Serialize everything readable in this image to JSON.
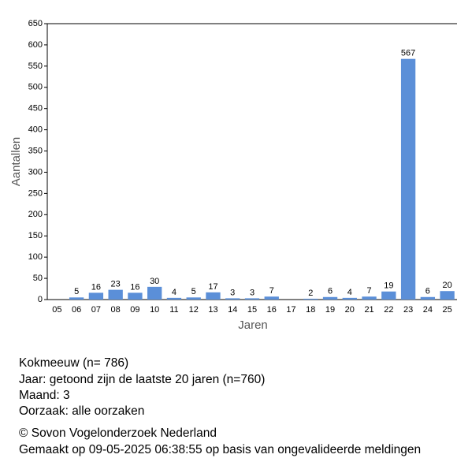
{
  "chart_data": {
    "type": "bar",
    "x_label": "Jaren",
    "y_label": "Aantallen",
    "categories": [
      "05",
      "06",
      "07",
      "08",
      "09",
      "10",
      "11",
      "12",
      "13",
      "14",
      "15",
      "16",
      "17",
      "18",
      "19",
      "20",
      "21",
      "22",
      "23",
      "24",
      "25"
    ],
    "values": [
      null,
      5,
      16,
      23,
      16,
      30,
      4,
      5,
      17,
      3,
      3,
      7,
      null,
      2,
      6,
      4,
      7,
      19,
      567,
      6,
      20
    ],
    "color": "#5b8fd8",
    "ylim": [
      0,
      650
    ],
    "yticks": [
      0,
      50,
      100,
      150,
      200,
      250,
      300,
      350,
      400,
      450,
      500,
      550,
      600,
      650
    ],
    "grid": false
  },
  "footer": {
    "lines": [
      "Kokmeeuw  (n= 786)",
      "Jaar: getoond zijn de laatste 20 jaren (n=760)",
      "Maand: 3",
      "Oorzaak: alle oorzaken",
      "© Sovon Vogelonderzoek Nederland",
      "Gemaakt op 09-05-2025 06:38:55 op basis van ongevalideerde meldingen"
    ]
  }
}
